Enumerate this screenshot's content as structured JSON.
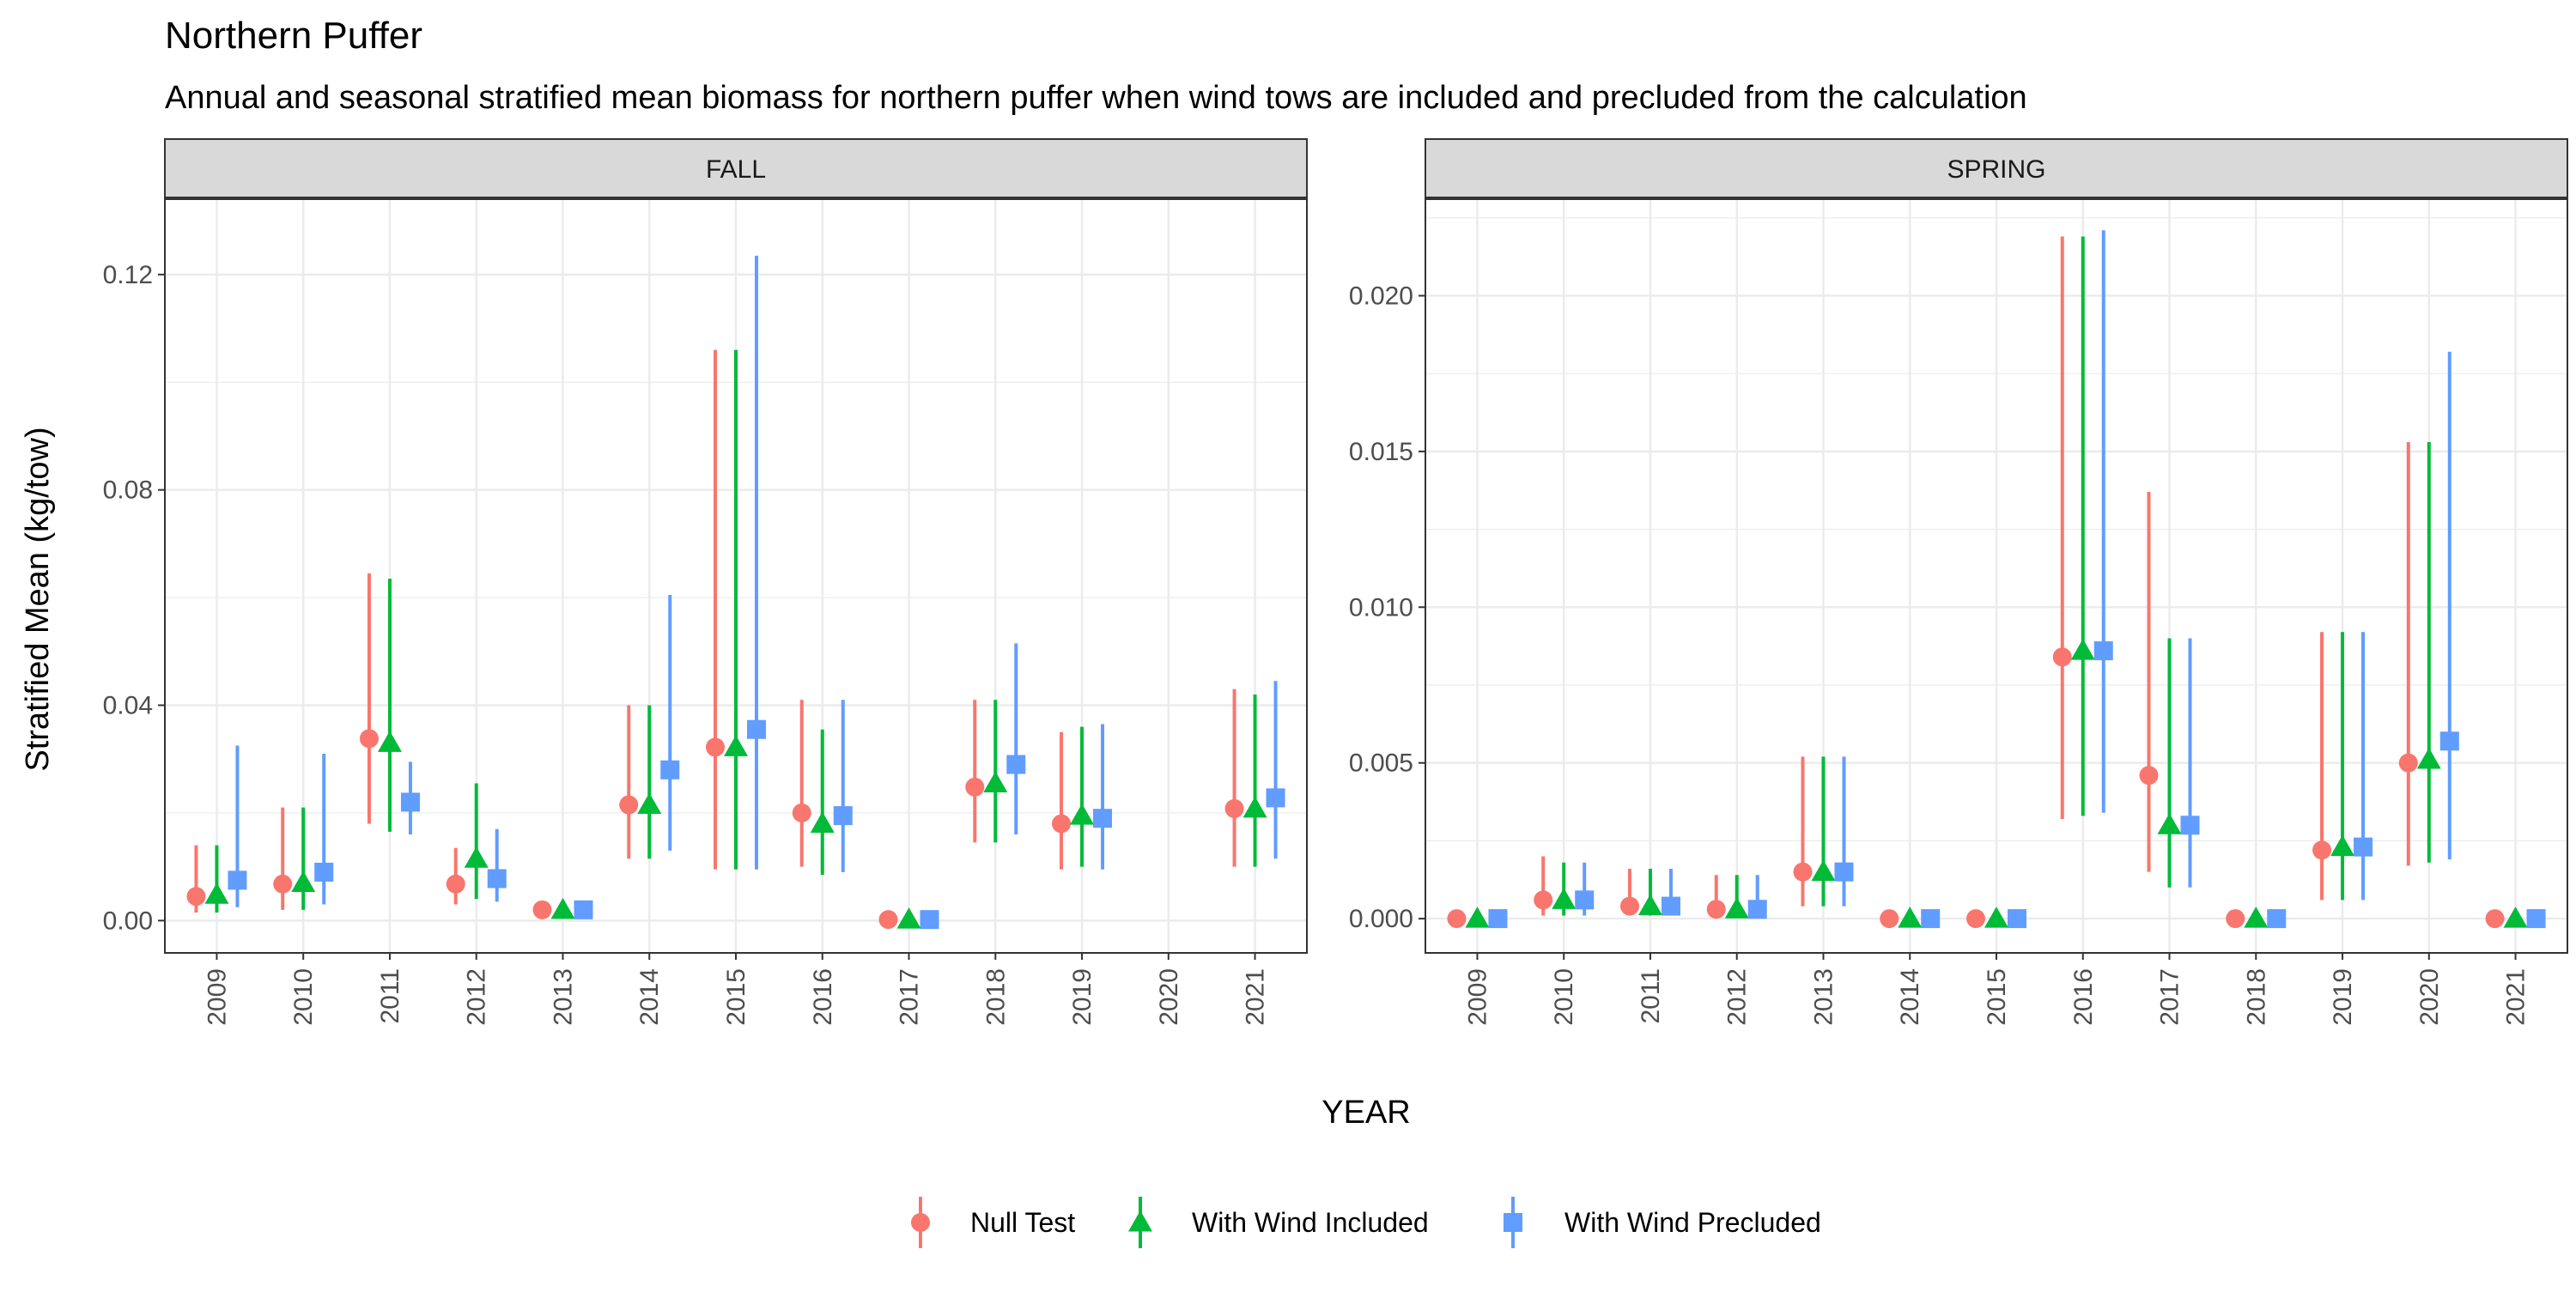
{
  "title": "Northern Puffer",
  "subtitle": "Annual and seasonal stratified mean biomass for northern puffer when wind tows are included and precluded from the calculation",
  "colors": {
    "null_test": "#F8766D",
    "with_wind_included": "#00BA38",
    "with_wind_precluded": "#619CFF",
    "strip_fill": "#D9D9D9",
    "grid": "#EBEBEB"
  },
  "chart_data": {
    "type": "scatter",
    "xlabel": "YEAR",
    "ylabel": "Stratified Mean (kg/tow)",
    "legend_position": "bottom",
    "grid": true,
    "legend": [
      {
        "key": "null_test",
        "label": "Null Test",
        "shape": "circle"
      },
      {
        "key": "with_wind_included",
        "label": "With Wind Included",
        "shape": "triangle"
      },
      {
        "key": "with_wind_precluded",
        "label": "With Wind Precluded",
        "shape": "square"
      }
    ],
    "categories": [
      "2009",
      "2010",
      "2011",
      "2012",
      "2013",
      "2014",
      "2015",
      "2016",
      "2017",
      "2018",
      "2019",
      "2020",
      "2021"
    ],
    "panels": [
      {
        "strip": "FALL",
        "ylim": [
          -0.006,
          0.134
        ],
        "yticks": [
          0.0,
          0.04,
          0.08,
          0.12
        ],
        "ytick_labels": [
          "0.00",
          "0.04",
          "0.08",
          "0.12"
        ],
        "series": [
          {
            "key": "null_test",
            "name": "Null Test",
            "values": [
              0.0045,
              0.0068,
              0.0338,
              0.0068,
              0.002,
              0.0215,
              0.0322,
              0.02,
              0.0002,
              0.0248,
              0.018,
              null,
              0.0208
            ],
            "lower": [
              0.0015,
              0.002,
              0.018,
              0.003,
              0.0005,
              0.0115,
              0.0095,
              0.01,
              0.0,
              0.0145,
              0.0095,
              null,
              0.01
            ],
            "upper": [
              0.014,
              0.021,
              0.0645,
              0.0135,
              0.003,
              0.04,
              0.106,
              0.041,
              0.001,
              0.041,
              0.035,
              null,
              0.043
            ]
          },
          {
            "key": "with_wind_included",
            "name": "With Wind Included",
            "values": [
              0.0048,
              0.007,
              0.033,
              0.0115,
              0.002,
              0.0215,
              0.0322,
              0.018,
              0.0002,
              0.0255,
              0.0195,
              null,
              0.0208
            ],
            "lower": [
              0.0015,
              0.002,
              0.0165,
              0.004,
              0.0005,
              0.0115,
              0.0095,
              0.0085,
              0.0,
              0.0145,
              0.01,
              null,
              0.01
            ],
            "upper": [
              0.014,
              0.021,
              0.0635,
              0.0255,
              0.003,
              0.04,
              0.106,
              0.0355,
              0.001,
              0.041,
              0.036,
              null,
              0.042
            ]
          },
          {
            "key": "with_wind_precluded",
            "name": "With Wind Precluded",
            "values": [
              0.0075,
              0.009,
              0.022,
              0.0078,
              0.002,
              0.028,
              0.0355,
              0.0195,
              0.0002,
              0.029,
              0.019,
              null,
              0.0228
            ],
            "lower": [
              0.0025,
              0.003,
              0.016,
              0.0035,
              0.0005,
              0.013,
              0.0095,
              0.009,
              0.0,
              0.016,
              0.0095,
              null,
              0.0115
            ],
            "upper": [
              0.0325,
              0.031,
              0.0295,
              0.017,
              0.003,
              0.0605,
              0.1235,
              0.041,
              0.001,
              0.0515,
              0.0365,
              null,
              0.0445
            ]
          }
        ]
      },
      {
        "strip": "SPRING",
        "ylim": [
          -0.0011,
          0.0231
        ],
        "yticks": [
          0.0,
          0.005,
          0.01,
          0.015,
          0.02
        ],
        "ytick_labels": [
          "0.000",
          "0.005",
          "0.010",
          "0.015",
          "0.020"
        ],
        "series": [
          {
            "key": "null_test",
            "name": "Null Test",
            "values": [
              0.0,
              0.0006,
              0.0004,
              0.0003,
              0.0015,
              0.0,
              0.0,
              0.0084,
              0.0046,
              0.0,
              0.0022,
              0.005,
              0.0
            ],
            "lower": [
              0.0,
              0.0001,
              0.0001,
              0.0001,
              0.0004,
              0.0,
              0.0,
              0.0032,
              0.0015,
              0.0,
              0.0006,
              0.0017,
              0.0
            ],
            "upper": [
              0.0001,
              0.002,
              0.0016,
              0.0014,
              0.0052,
              0.0001,
              0.0001,
              0.0219,
              0.0137,
              0.0001,
              0.0092,
              0.0153,
              0.0001
            ]
          },
          {
            "key": "with_wind_included",
            "name": "With Wind Included",
            "values": [
              0.0,
              0.0006,
              0.0004,
              0.0003,
              0.0015,
              0.0,
              0.0,
              0.0086,
              0.003,
              0.0,
              0.0023,
              0.0051,
              0.0
            ],
            "lower": [
              0.0,
              0.0001,
              0.0001,
              0.0001,
              0.0004,
              0.0,
              0.0,
              0.0033,
              0.001,
              0.0,
              0.0006,
              0.0018,
              0.0
            ],
            "upper": [
              0.0001,
              0.0018,
              0.0016,
              0.0014,
              0.0052,
              0.0001,
              0.0001,
              0.0219,
              0.009,
              0.0001,
              0.0092,
              0.0153,
              0.0001
            ]
          },
          {
            "key": "with_wind_precluded",
            "name": "With Wind Precluded",
            "values": [
              0.0,
              0.0006,
              0.0004,
              0.0003,
              0.0015,
              0.0,
              0.0,
              0.0086,
              0.003,
              0.0,
              0.0023,
              0.0057,
              0.0
            ],
            "lower": [
              0.0,
              0.0001,
              0.0001,
              0.0001,
              0.0004,
              0.0,
              0.0,
              0.0034,
              0.001,
              0.0,
              0.0006,
              0.0019,
              0.0
            ],
            "upper": [
              0.0001,
              0.0018,
              0.0016,
              0.0014,
              0.0052,
              0.0001,
              0.0001,
              0.0221,
              0.009,
              0.0001,
              0.0092,
              0.0182,
              0.0001
            ]
          }
        ]
      }
    ]
  }
}
